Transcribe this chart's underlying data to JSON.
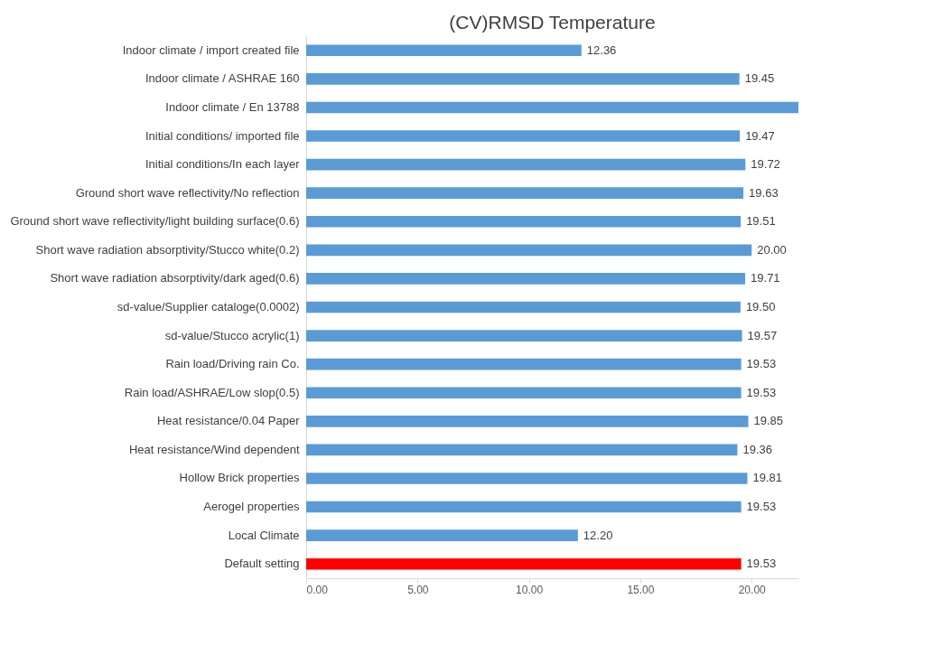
{
  "chart_data": {
    "type": "bar",
    "orientation": "horizontal",
    "title": "(CV)RMSD Temperature",
    "categories": [
      "Indoor climate / import created file",
      "Indoor climate / ASHRAE 160",
      "Indoor climate / En 13788",
      "Initial conditions/ imported file",
      "Initial conditions/In each layer",
      "Ground short wave reflectivity/No reflection",
      "Ground short wave reflectivity/light building surface(0.6)",
      "Short wave radiation absorptivity/Stucco white(0.2)",
      "Short wave radiation absorptivity/dark aged(0.6)",
      "sd-value/Supplier cataloge(0.0002)",
      "sd-value/Stucco acrylic(1)",
      "Rain load/Driving rain Co.",
      "Rain load/ASHRAE/Low slop(0.5)",
      "Heat resistance/0.04 Paper",
      "Heat resistance/Wind dependent",
      "Hollow Brick properties",
      "Aerogel properties",
      "Local Climate",
      "Default setting"
    ],
    "values": [
      12.36,
      19.45,
      22.1,
      19.47,
      19.72,
      19.63,
      19.51,
      20.0,
      19.71,
      19.5,
      19.57,
      19.53,
      19.53,
      19.85,
      19.36,
      19.81,
      19.53,
      12.2,
      19.53
    ],
    "value_labels": [
      "12.36",
      "19.45",
      null,
      "19.47",
      "19.72",
      "19.63",
      "19.51",
      "20.00",
      "19.71",
      "19.50",
      "19.57",
      "19.53",
      "19.53",
      "19.85",
      "19.36",
      "19.81",
      "19.53",
      "12.20",
      "19.53"
    ],
    "colors": [
      "#5b9bd5",
      "#5b9bd5",
      "#5b9bd5",
      "#5b9bd5",
      "#5b9bd5",
      "#5b9bd5",
      "#5b9bd5",
      "#5b9bd5",
      "#5b9bd5",
      "#5b9bd5",
      "#5b9bd5",
      "#5b9bd5",
      "#5b9bd5",
      "#5b9bd5",
      "#5b9bd5",
      "#5b9bd5",
      "#5b9bd5",
      "#5b9bd5",
      "#ff0000"
    ],
    "xlim": [
      0,
      22.1
    ],
    "xticks": [
      {
        "value": 0,
        "label": "0.00"
      },
      {
        "value": 5,
        "label": "5.00"
      },
      {
        "value": 10,
        "label": "10.00"
      },
      {
        "value": 15,
        "label": "15.00"
      },
      {
        "value": 20,
        "label": "20.00"
      }
    ],
    "grid": false
  }
}
